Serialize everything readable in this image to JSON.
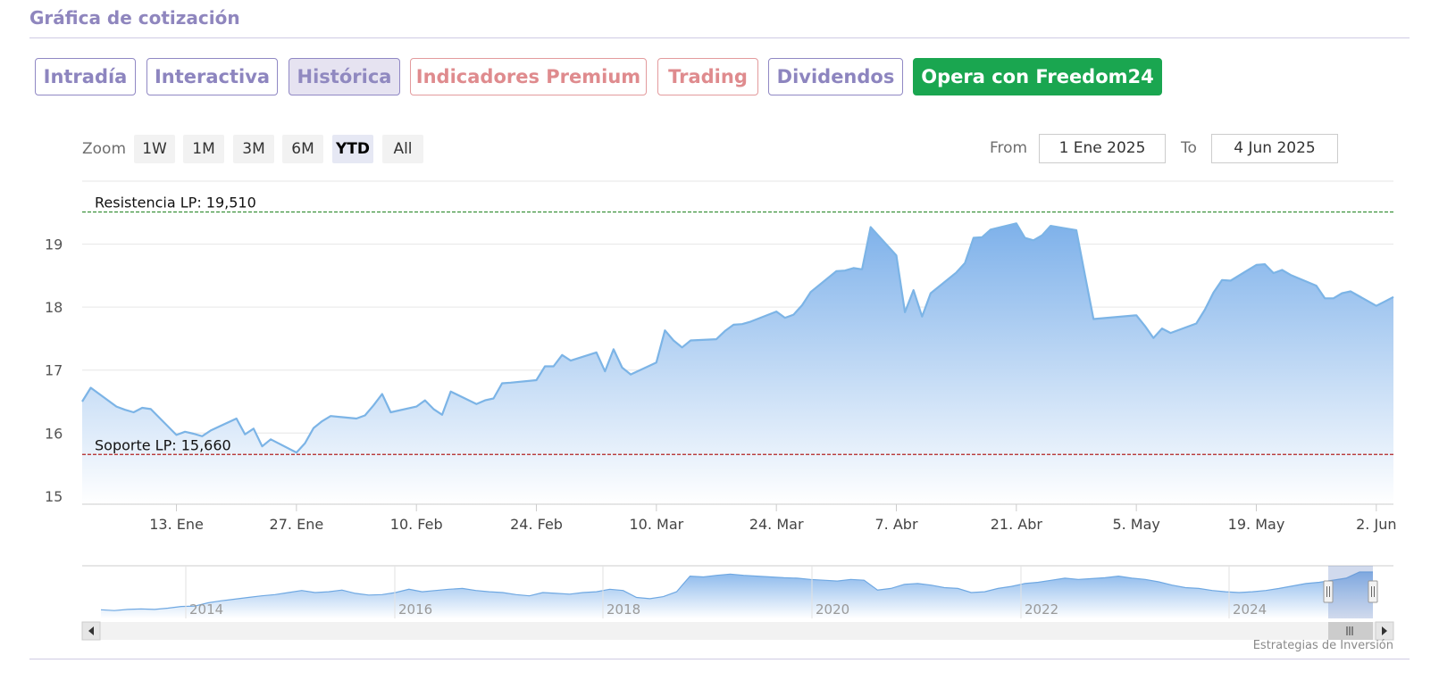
{
  "header": {
    "title": "Gráfica de cotización"
  },
  "tabs": [
    {
      "label": "Intradía"
    },
    {
      "label": "Interactiva"
    },
    {
      "label": "Histórica"
    },
    {
      "label": "Indicadores Premium"
    },
    {
      "label": "Trading"
    },
    {
      "label": "Dividendos"
    },
    {
      "label": "Opera con Freedom24"
    }
  ],
  "range_selector": {
    "zoom_label": "Zoom",
    "buttons": [
      "1W",
      "1M",
      "3M",
      "6M",
      "YTD",
      "All"
    ],
    "selected": "YTD",
    "from_label": "From",
    "from_value": "1 Ene 2025",
    "to_label": "To",
    "to_value": "4 Jun 2025"
  },
  "credit": "Estrategias de Inversión",
  "colors": {
    "series_line": "#7cb4e6",
    "area_top": "#8ab8ec",
    "resistance": "#2e8b2e",
    "support": "#b22222",
    "tab_border": "#9088c4",
    "tab_red": "#df8b8e",
    "green_button": "#1aa650"
  },
  "chart_data": {
    "type": "area",
    "x_axis": {
      "ticks": [
        "13. Ene",
        "27. Ene",
        "10. Feb",
        "24. Feb",
        "10. Mar",
        "24. Mar",
        "7. Abr",
        "21. Abr",
        "5. May",
        "19. May",
        "2. Jun"
      ]
    },
    "y_axis": {
      "ticks": [
        15,
        16,
        17,
        18,
        19
      ],
      "range": [
        14.87,
        20.0
      ]
    },
    "grid": true,
    "reference_lines": [
      {
        "label": "Resistencia LP: 19,510",
        "value": 19.51,
        "color": "#2e8b2e",
        "style": "dashed"
      },
      {
        "label": "Soporte LP: 15,660",
        "value": 15.66,
        "color": "#b22222",
        "style": "dashed"
      }
    ],
    "series": [
      {
        "points": [
          [
            "2025-01-02",
            16.5
          ],
          [
            "2025-01-03",
            16.72
          ],
          [
            "2025-01-06",
            16.42
          ],
          [
            "2025-01-07",
            16.37
          ],
          [
            "2025-01-08",
            16.33
          ],
          [
            "2025-01-09",
            16.4
          ],
          [
            "2025-01-10",
            16.38
          ],
          [
            "2025-01-13",
            15.97
          ],
          [
            "2025-01-14",
            16.02
          ],
          [
            "2025-01-15",
            15.99
          ],
          [
            "2025-01-16",
            15.95
          ],
          [
            "2025-01-17",
            16.04
          ],
          [
            "2025-01-20",
            16.23
          ],
          [
            "2025-01-21",
            15.98
          ],
          [
            "2025-01-22",
            16.07
          ],
          [
            "2025-01-23",
            15.79
          ],
          [
            "2025-01-24",
            15.9
          ],
          [
            "2025-01-27",
            15.69
          ],
          [
            "2025-01-28",
            15.84
          ],
          [
            "2025-01-29",
            16.08
          ],
          [
            "2025-01-30",
            16.19
          ],
          [
            "2025-01-31",
            16.27
          ],
          [
            "2025-02-03",
            16.23
          ],
          [
            "2025-02-04",
            16.28
          ],
          [
            "2025-02-05",
            16.44
          ],
          [
            "2025-02-06",
            16.62
          ],
          [
            "2025-02-07",
            16.33
          ],
          [
            "2025-02-10",
            16.42
          ],
          [
            "2025-02-11",
            16.52
          ],
          [
            "2025-02-12",
            16.38
          ],
          [
            "2025-02-13",
            16.29
          ],
          [
            "2025-02-14",
            16.66
          ],
          [
            "2025-02-17",
            16.46
          ],
          [
            "2025-02-18",
            16.52
          ],
          [
            "2025-02-19",
            16.55
          ],
          [
            "2025-02-20",
            16.79
          ],
          [
            "2025-02-21",
            16.8
          ],
          [
            "2025-02-24",
            16.84
          ],
          [
            "2025-02-25",
            17.06
          ],
          [
            "2025-02-26",
            17.06
          ],
          [
            "2025-02-27",
            17.24
          ],
          [
            "2025-02-28",
            17.15
          ],
          [
            "2025-03-03",
            17.28
          ],
          [
            "2025-03-04",
            16.98
          ],
          [
            "2025-03-05",
            17.33
          ],
          [
            "2025-03-06",
            17.04
          ],
          [
            "2025-03-07",
            16.93
          ],
          [
            "2025-03-10",
            17.12
          ],
          [
            "2025-03-11",
            17.63
          ],
          [
            "2025-03-12",
            17.47
          ],
          [
            "2025-03-13",
            17.36
          ],
          [
            "2025-03-14",
            17.47
          ],
          [
            "2025-03-17",
            17.49
          ],
          [
            "2025-03-18",
            17.62
          ],
          [
            "2025-03-19",
            17.72
          ],
          [
            "2025-03-20",
            17.73
          ],
          [
            "2025-03-21",
            17.77
          ],
          [
            "2025-03-24",
            17.93
          ],
          [
            "2025-03-25",
            17.83
          ],
          [
            "2025-03-26",
            17.88
          ],
          [
            "2025-03-27",
            18.03
          ],
          [
            "2025-03-28",
            18.24
          ],
          [
            "2025-03-31",
            18.57
          ],
          [
            "2025-04-01",
            18.58
          ],
          [
            "2025-04-02",
            18.62
          ],
          [
            "2025-04-03",
            18.6
          ],
          [
            "2025-04-04",
            19.27
          ],
          [
            "2025-04-07",
            18.82
          ],
          [
            "2025-04-08",
            17.92
          ],
          [
            "2025-04-09",
            18.27
          ],
          [
            "2025-04-10",
            17.85
          ],
          [
            "2025-04-11",
            18.22
          ],
          [
            "2025-04-14",
            18.55
          ],
          [
            "2025-04-15",
            18.7
          ],
          [
            "2025-04-16",
            19.1
          ],
          [
            "2025-04-17",
            19.11
          ],
          [
            "2025-04-18",
            19.23
          ],
          [
            "2025-04-21",
            19.33
          ],
          [
            "2025-04-22",
            19.1
          ],
          [
            "2025-04-23",
            19.06
          ],
          [
            "2025-04-24",
            19.14
          ],
          [
            "2025-04-25",
            19.29
          ],
          [
            "2025-04-28",
            19.22
          ],
          [
            "2025-04-29",
            18.51
          ],
          [
            "2025-04-30",
            17.81
          ],
          [
            "2025-05-05",
            17.87
          ],
          [
            "2025-05-06",
            17.7
          ],
          [
            "2025-05-07",
            17.51
          ],
          [
            "2025-05-08",
            17.66
          ],
          [
            "2025-05-09",
            17.59
          ],
          [
            "2025-05-12",
            17.74
          ],
          [
            "2025-05-13",
            17.96
          ],
          [
            "2025-05-14",
            18.23
          ],
          [
            "2025-05-15",
            18.43
          ],
          [
            "2025-05-16",
            18.42
          ],
          [
            "2025-05-19",
            18.67
          ],
          [
            "2025-05-20",
            18.68
          ],
          [
            "2025-05-21",
            18.54
          ],
          [
            "2025-05-22",
            18.59
          ],
          [
            "2025-05-23",
            18.51
          ],
          [
            "2025-05-26",
            18.34
          ],
          [
            "2025-05-27",
            18.14
          ],
          [
            "2025-05-28",
            18.14
          ],
          [
            "2025-05-29",
            18.22
          ],
          [
            "2025-05-30",
            18.25
          ],
          [
            "2025-06-02",
            18.02
          ],
          [
            "2025-06-03",
            18.09
          ],
          [
            "2025-06-04",
            18.16
          ]
        ]
      }
    ],
    "navigator": {
      "x_ticks": [
        "2014",
        "2016",
        "2018",
        "2020",
        "2022",
        "2024"
      ],
      "profile": [
        0.08,
        0.06,
        0.09,
        0.1,
        0.09,
        0.12,
        0.16,
        0.17,
        0.25,
        0.3,
        0.34,
        0.38,
        0.42,
        0.45,
        0.5,
        0.55,
        0.5,
        0.52,
        0.56,
        0.48,
        0.44,
        0.45,
        0.5,
        0.58,
        0.52,
        0.55,
        0.58,
        0.6,
        0.55,
        0.52,
        0.5,
        0.45,
        0.42,
        0.5,
        0.48,
        0.46,
        0.5,
        0.52,
        0.58,
        0.55,
        0.38,
        0.35,
        0.4,
        0.52,
        0.9,
        0.88,
        0.92,
        0.95,
        0.92,
        0.9,
        0.88,
        0.86,
        0.85,
        0.82,
        0.8,
        0.78,
        0.82,
        0.8,
        0.56,
        0.6,
        0.7,
        0.72,
        0.68,
        0.62,
        0.6,
        0.5,
        0.52,
        0.6,
        0.65,
        0.72,
        0.75,
        0.8,
        0.85,
        0.82,
        0.84,
        0.86,
        0.9,
        0.85,
        0.82,
        0.76,
        0.68,
        0.62,
        0.6,
        0.55,
        0.52,
        0.5,
        0.52,
        0.55,
        0.6,
        0.66,
        0.72,
        0.75,
        0.8,
        0.85,
        1.0,
        1.0
      ]
    }
  }
}
